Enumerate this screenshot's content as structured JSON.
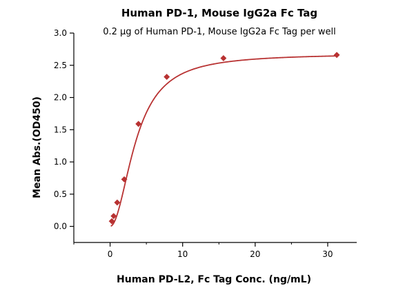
{
  "chart_data": {
    "type": "scatter",
    "title": "Human PD-1, Mouse IgG2a Fc Tag",
    "subtitle": "0.2 μg of Human PD-1, Mouse IgG2a Fc Tag per well",
    "xlabel": "Human PD-L2, Fc Tag Conc. (ng/mL)",
    "ylabel": "Mean Abs.(OD450)",
    "xlim": [
      -5,
      34
    ],
    "ylim": [
      -0.25,
      3.0
    ],
    "xticks": [
      0,
      10,
      20,
      30
    ],
    "yticks": [
      0.0,
      0.5,
      1.0,
      1.5,
      2.0,
      2.5,
      3.0
    ],
    "xtick_labels": [
      "0",
      "10",
      "20",
      "30"
    ],
    "ytick_labels": [
      "0.0",
      "0.5",
      "1.0",
      "1.5",
      "2.0",
      "2.5",
      "3.0"
    ],
    "grid": false,
    "legend": "none",
    "series": [
      {
        "points": [
          {
            "x": 0.24,
            "y": 0.08
          },
          {
            "x": 0.49,
            "y": 0.16
          },
          {
            "x": 0.98,
            "y": 0.37
          },
          {
            "x": 1.95,
            "y": 0.73
          },
          {
            "x": 3.91,
            "y": 1.59
          },
          {
            "x": 7.81,
            "y": 2.32
          },
          {
            "x": 15.63,
            "y": 2.61
          },
          {
            "x": 31.25,
            "y": 2.66
          }
        ]
      }
    ],
    "fit_curve": {
      "model": "4PL",
      "bottom": 0.0,
      "top": 2.68,
      "ec50": 3.6,
      "hill": 2.0,
      "x_range": [
        0.1,
        31.25
      ]
    },
    "color": "#b83232"
  }
}
